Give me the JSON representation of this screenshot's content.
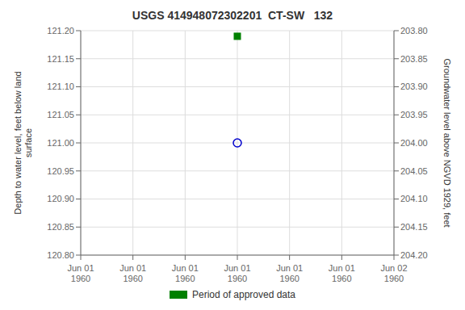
{
  "chart_data": {
    "type": "scatter",
    "title": "USGS 414948072302201  CT-SW   132",
    "y_label": "Depth to water level, feet below land\nsurface",
    "y2_label": "Groundwater level above NGVD 1929, feet",
    "categories": [
      "Jun 01\n1960",
      "Jun 01\n1960",
      "Jun 01\n1960",
      "Jun 01\n1960",
      "Jun 01\n1960",
      "Jun 01\n1960",
      "Jun 02\n1960"
    ],
    "series": [
      {
        "color": "#0000cc",
        "marker": "open_circle",
        "values": [
          null,
          null,
          null,
          121.0,
          null,
          null,
          null
        ]
      },
      {
        "name": "Period of approved data",
        "color": "#008000",
        "marker": "square",
        "values": [
          null,
          null,
          null,
          121.19,
          null,
          null,
          null
        ]
      }
    ],
    "ylim": [
      120.8,
      121.2
    ],
    "yticks": [
      {
        "value": 120.8,
        "label": "120.80"
      },
      {
        "value": 120.85,
        "label": "120.85"
      },
      {
        "value": 120.9,
        "label": "120.90"
      },
      {
        "value": 120.95,
        "label": "120.95"
      },
      {
        "value": 121.0,
        "label": "121.00"
      },
      {
        "value": 121.05,
        "label": "121.05"
      },
      {
        "value": 121.1,
        "label": "121.10"
      },
      {
        "value": 121.15,
        "label": "121.15"
      },
      {
        "value": 121.2,
        "label": "121.20"
      }
    ],
    "y2lim": [
      204.2,
      203.8
    ],
    "y2ticks": [
      {
        "value": 204.2,
        "label": "204.20"
      },
      {
        "value": 204.15,
        "label": "204.15"
      },
      {
        "value": 204.1,
        "label": "204.10"
      },
      {
        "value": 204.05,
        "label": "204.05"
      },
      {
        "value": 204.0,
        "label": "204.00"
      },
      {
        "value": 203.95,
        "label": "203.95"
      },
      {
        "value": 203.9,
        "label": "203.90"
      },
      {
        "value": 203.85,
        "label": "203.85"
      },
      {
        "value": 203.8,
        "label": "203.80"
      }
    ],
    "grid": true,
    "legend": "bottom"
  }
}
